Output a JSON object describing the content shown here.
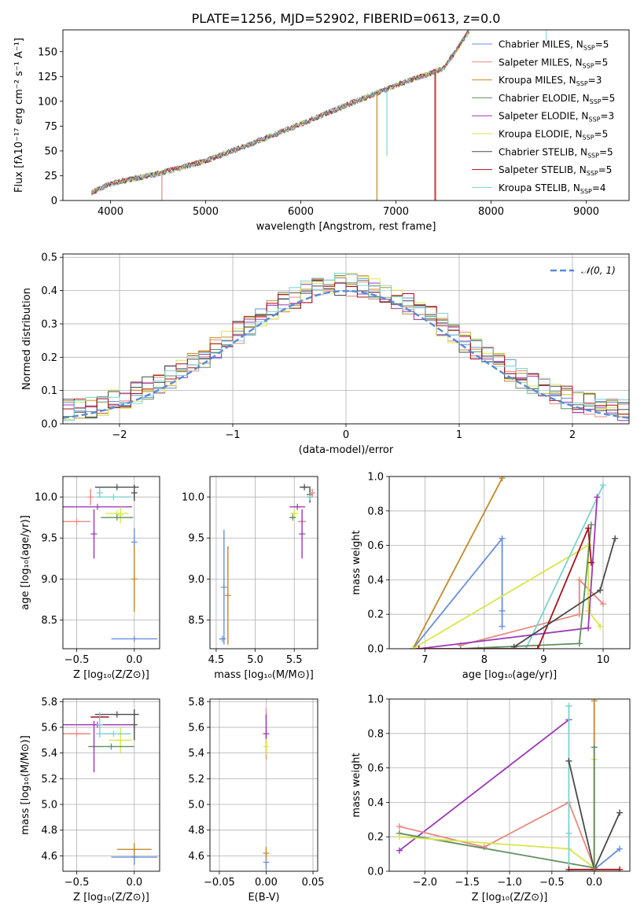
{
  "figure_title": "PLATE=1256, MJD=52902, FIBERID=0613, z=0.0",
  "model_colors": [
    "#6a8fd8",
    "#e8897e",
    "#bf8a2a",
    "#5f8f5f",
    "#9a39b5",
    "#d9e64a",
    "#4a4a4a",
    "#a3121c",
    "#7fd0d0"
  ],
  "chart_data": [
    {
      "id": "spectrum",
      "type": "line",
      "xlabel": "wavelength [Angstrom, rest frame]",
      "ylabel": "Flux [fλ10⁻¹⁷ erg cm⁻² s⁻¹ A⁻¹]",
      "xlim": [
        3500,
        9450
      ],
      "ylim": [
        0,
        172
      ],
      "xticks": [
        4000,
        5000,
        6000,
        7000,
        8000,
        9000
      ],
      "yticks": [
        0,
        25,
        50,
        75,
        100,
        125,
        150
      ],
      "grid": false,
      "legend_position": "right",
      "continuum_x": [
        3800,
        4000,
        4500,
        5000,
        5500,
        6000,
        6500,
        7000,
        7500,
        7780
      ],
      "continuum_y": [
        8,
        17,
        27,
        40,
        58,
        77,
        97,
        116,
        133,
        172
      ],
      "dips": [
        {
          "x": 4540,
          "y": 0,
          "color_index": 1
        },
        {
          "x": 6800,
          "y": 0,
          "color_index": 2
        },
        {
          "x": 6905,
          "y": 45,
          "color_index": 8
        },
        {
          "x": 7410,
          "y": 0,
          "color_index": 7
        },
        {
          "x": 7420,
          "y": 0,
          "color_index": 1
        }
      ],
      "legend": [
        {
          "label": "Chabrier MILES, N",
          "sub": "SSP",
          "tail": "=5"
        },
        {
          "label": "Salpeter MILES, N",
          "sub": "SSP",
          "tail": "=5"
        },
        {
          "label": "Kroupa MILES, N",
          "sub": "SSP",
          "tail": "=3"
        },
        {
          "label": "Chabrier ELODIE, N",
          "sub": "SSP",
          "tail": "=5"
        },
        {
          "label": "Salpeter ELODIE, N",
          "sub": "SSP",
          "tail": "=3"
        },
        {
          "label": "Kroupa ELODIE, N",
          "sub": "SSP",
          "tail": "=5"
        },
        {
          "label": "Chabrier STELIB, N",
          "sub": "SSP",
          "tail": "=5"
        },
        {
          "label": "Salpeter STELIB, N",
          "sub": "SSP",
          "tail": "=5"
        },
        {
          "label": "Kroupa STELIB, N",
          "sub": "SSP",
          "tail": "=4"
        }
      ]
    },
    {
      "id": "residuals",
      "type": "line",
      "xlabel": "(data-model)/error",
      "ylabel": "Normed distribution",
      "xlim": [
        -2.5,
        2.5
      ],
      "ylim": [
        0,
        0.51
      ],
      "xticks": [
        -2,
        -1,
        0,
        1,
        2
      ],
      "yticks": [
        0.0,
        0.1,
        0.2,
        0.3,
        0.4,
        0.5
      ],
      "grid": true,
      "legend_position": "top-right",
      "legend_label": "𝒩(0, 1)",
      "curve_color": "#5b8ad6",
      "bin_width": 0.1
    },
    {
      "id": "age-vs-z",
      "type": "scatter",
      "xlabel": "Z [log₁₀(Z/Z⊙)]",
      "ylabel": "age  [log₁₀(age/yr)]",
      "xlim": [
        -0.62,
        0.22
      ],
      "ylim": [
        8.15,
        10.25
      ],
      "xticks": [
        -0.5,
        0.0
      ],
      "yticks": [
        8.5,
        9.0,
        9.5,
        10.0
      ],
      "grid": true,
      "points": [
        {
          "c": 0,
          "x": 0.0,
          "y": 8.27,
          "xe": 0.2,
          "ye": 0.0
        },
        {
          "c": 0,
          "x": 0.0,
          "y": 9.45,
          "xe": 0.0,
          "ye": 0.17
        },
        {
          "c": 1,
          "x": -0.5,
          "y": 9.7,
          "xe": 0.12,
          "ye": 0.0
        },
        {
          "c": 1,
          "x": -0.38,
          "y": 10.0,
          "xe": 0.0,
          "ye": 0.1
        },
        {
          "c": 2,
          "x": 0.0,
          "y": 9.0,
          "xe": 0.0,
          "ye": 0.4
        },
        {
          "c": 4,
          "x": -0.32,
          "y": 9.88,
          "xe": 0.3,
          "ye": 0.0
        },
        {
          "c": 4,
          "x": -0.35,
          "y": 9.55,
          "xe": 0.0,
          "ye": 0.3
        },
        {
          "c": 5,
          "x": -0.12,
          "y": 9.78,
          "xe": 0.0,
          "ye": 0.1
        },
        {
          "c": 5,
          "x": -0.15,
          "y": 9.8,
          "xe": 0.1,
          "ye": 0.0
        },
        {
          "c": 3,
          "x": -0.15,
          "y": 9.75,
          "xe": 0.14,
          "ye": 0.0
        },
        {
          "c": 6,
          "x": -0.15,
          "y": 10.12,
          "xe": 0.19,
          "ye": 0.0
        },
        {
          "c": 6,
          "x": 0.0,
          "y": 10.05,
          "xe": 0.0,
          "ye": 0.1
        },
        {
          "c": 8,
          "x": -0.18,
          "y": 10.0,
          "xe": 0.15,
          "ye": 0.0
        },
        {
          "c": 8,
          "x": -0.3,
          "y": 10.05,
          "xe": 0.0,
          "ye": 0.06
        }
      ]
    },
    {
      "id": "age-vs-mass",
      "type": "scatter",
      "xlabel": "mass [log₁₀(M/M⊙)]",
      "ylabel": "",
      "xlim": [
        4.42,
        5.8
      ],
      "ylim": [
        8.15,
        10.25
      ],
      "xticks": [
        4.5,
        5.0,
        5.5
      ],
      "yticks": [
        8.5,
        9.0,
        9.5,
        10.0
      ],
      "grid": true,
      "points": [
        {
          "c": 0,
          "x": 4.58,
          "y": 8.27,
          "xe": 0.04,
          "ye": 0.0
        },
        {
          "c": 0,
          "x": 4.6,
          "y": 8.9,
          "xe": 0.0,
          "ye": 0.7
        },
        {
          "c": 2,
          "x": 4.65,
          "y": 8.8,
          "xe": 0.0,
          "ye": 0.6
        },
        {
          "c": 1,
          "x": 5.6,
          "y": 9.7,
          "xe": 0.05,
          "ye": 0.0
        },
        {
          "c": 4,
          "x": 5.54,
          "y": 9.88,
          "xe": 0.1,
          "ye": 0.0
        },
        {
          "c": 4,
          "x": 5.6,
          "y": 9.55,
          "xe": 0.0,
          "ye": 0.3
        },
        {
          "c": 5,
          "x": 5.5,
          "y": 9.8,
          "xe": 0.05,
          "ye": 0.05
        },
        {
          "c": 3,
          "x": 5.48,
          "y": 9.75,
          "xe": 0.04,
          "ye": 0.0
        },
        {
          "c": 6,
          "x": 5.63,
          "y": 10.12,
          "xe": 0.06,
          "ye": 0.0
        },
        {
          "c": 6,
          "x": 5.7,
          "y": 10.03,
          "xe": 0.0,
          "ye": 0.1
        },
        {
          "c": 8,
          "x": 5.7,
          "y": 10.0,
          "xe": 0.04,
          "ye": 0.0
        },
        {
          "c": 1,
          "x": 5.73,
          "y": 10.05,
          "xe": 0.0,
          "ye": 0.05
        }
      ]
    },
    {
      "id": "weight-vs-age",
      "type": "line",
      "xlabel": "age  [log₁₀(age/yr)]",
      "ylabel": "mass weight",
      "xlim": [
        6.4,
        10.45
      ],
      "ylim": [
        0,
        1.0
      ],
      "xticks": [
        7,
        8,
        9,
        10
      ],
      "yticks": [
        0.0,
        0.2,
        0.4,
        0.6,
        0.8,
        1.0
      ],
      "grid": true,
      "series": [
        {
          "c": 0,
          "x": [
            6.8,
            8.3,
            8.3,
            8.3
          ],
          "y": [
            0.0,
            0.64,
            0.22,
            0.13
          ]
        },
        {
          "c": 2,
          "x": [
            6.8,
            8.3
          ],
          "y": [
            0.0,
            0.99
          ]
        },
        {
          "c": 1,
          "x": [
            7.6,
            9.6,
            9.6,
            10.0
          ],
          "y": [
            0.02,
            0.2,
            0.4,
            0.26
          ]
        },
        {
          "c": 5,
          "x": [
            6.8,
            9.75,
            9.75,
            9.95
          ],
          "y": [
            0.0,
            0.6,
            0.22,
            0.13
          ]
        },
        {
          "c": 8,
          "x": [
            7.9,
            8.7,
            10.0
          ],
          "y": [
            0.0,
            0.0,
            0.95
          ]
        },
        {
          "c": 4,
          "x": [
            6.9,
            9.75,
            9.9
          ],
          "y": [
            0.0,
            0.12,
            0.88
          ]
        },
        {
          "c": 3,
          "x": [
            7.6,
            9.6,
            9.8
          ],
          "y": [
            0.0,
            0.03,
            0.72
          ]
        },
        {
          "c": 7,
          "x": [
            6.9,
            8.9,
            9.75,
            9.8
          ],
          "y": [
            0.0,
            0.0,
            0.7,
            0.5
          ]
        },
        {
          "c": 6,
          "x": [
            8.5,
            9.95,
            10.2
          ],
          "y": [
            0.01,
            0.34,
            0.64
          ]
        }
      ]
    },
    {
      "id": "mass-vs-z",
      "type": "scatter",
      "xlabel": "Z [log₁₀(Z/Z⊙)]",
      "ylabel": "mass [log₁₀(M/M⊙)]",
      "xlim": [
        -0.62,
        0.22
      ],
      "ylim": [
        4.48,
        5.82
      ],
      "xticks": [
        -0.5,
        0.0
      ],
      "yticks": [
        4.6,
        4.8,
        5.0,
        5.2,
        5.4,
        5.6,
        5.8
      ],
      "grid": true,
      "points": [
        {
          "c": 0,
          "x": 0.0,
          "y": 4.59,
          "xe": 0.2,
          "ye": 0.0
        },
        {
          "c": 0,
          "x": 0.0,
          "y": 4.59,
          "xe": 0.0,
          "ye": 0.06
        },
        {
          "c": 2,
          "x": 0.0,
          "y": 4.65,
          "xe": 0.0,
          "ye": 0.05
        },
        {
          "c": 2,
          "x": 0.0,
          "y": 4.65,
          "xe": 0.15,
          "ye": 0.0
        },
        {
          "c": 1,
          "x": -0.5,
          "y": 5.55,
          "xe": 0.12,
          "ye": 0.0
        },
        {
          "c": 4,
          "x": -0.32,
          "y": 5.62,
          "xe": 0.3,
          "ye": 0.0
        },
        {
          "c": 4,
          "x": -0.35,
          "y": 5.45,
          "xe": 0.0,
          "ye": 0.2
        },
        {
          "c": 7,
          "x": -0.3,
          "y": 5.68,
          "xe": 0.08,
          "ye": 0.0
        },
        {
          "c": 5,
          "x": -0.12,
          "y": 5.5,
          "xe": 0.1,
          "ye": 0.0
        },
        {
          "c": 5,
          "x": -0.12,
          "y": 5.5,
          "xe": 0.0,
          "ye": 0.1
        },
        {
          "c": 6,
          "x": -0.15,
          "y": 5.7,
          "xe": 0.19,
          "ye": 0.0
        },
        {
          "c": 6,
          "x": 0.0,
          "y": 5.62,
          "xe": 0.0,
          "ye": 0.12
        },
        {
          "c": 3,
          "x": -0.2,
          "y": 5.45,
          "xe": 0.2,
          "ye": 0.0
        },
        {
          "c": 8,
          "x": -0.18,
          "y": 5.55,
          "xe": 0.15,
          "ye": 0.0
        },
        {
          "c": 8,
          "x": -0.3,
          "y": 5.62,
          "xe": 0.0,
          "ye": 0.1
        }
      ]
    },
    {
      "id": "mass-vs-ebv",
      "type": "scatter",
      "xlabel": "E(B-V)",
      "ylabel": "",
      "xlim": [
        -0.06,
        0.055
      ],
      "ylim": [
        4.48,
        5.82
      ],
      "xticks": [
        -0.05,
        0.0,
        0.05
      ],
      "yticks": [
        4.6,
        4.8,
        5.0,
        5.2,
        5.4,
        5.6,
        5.8
      ],
      "grid": true,
      "points": [
        {
          "c": 1,
          "x": 0.0,
          "y": 5.55,
          "xe": 0.0,
          "ye": 0.2
        },
        {
          "c": 4,
          "x": 0.0,
          "y": 5.55,
          "xe": 0.0,
          "ye": 0.15
        },
        {
          "c": 5,
          "x": 0.0,
          "y": 5.45,
          "xe": 0.0,
          "ye": 0.06
        },
        {
          "c": 0,
          "x": 0.0,
          "y": 4.55,
          "xe": 0.0,
          "ye": 0.06
        },
        {
          "c": 2,
          "x": 0.0,
          "y": 4.62,
          "xe": 0.0,
          "ye": 0.05
        }
      ]
    },
    {
      "id": "weight-vs-z",
      "type": "line",
      "xlabel": "Z [log₁₀(Z/Z⊙)]",
      "ylabel": "mass weight",
      "xlim": [
        -2.42,
        0.42
      ],
      "ylim": [
        0,
        1.0
      ],
      "xticks": [
        -2.0,
        -1.5,
        -1.0,
        -0.5,
        0.0
      ],
      "yticks": [
        0.0,
        0.2,
        0.4,
        0.6,
        0.8,
        1.0
      ],
      "grid": true,
      "series": [
        {
          "c": 4,
          "x": [
            -2.3,
            -0.3
          ],
          "y": [
            0.12,
            0.88
          ]
        },
        {
          "c": 1,
          "x": [
            -2.3,
            -1.3,
            -0.3,
            0.0
          ],
          "y": [
            0.26,
            0.14,
            0.4,
            0.02
          ]
        },
        {
          "c": 3,
          "x": [
            -2.3,
            0.0
          ],
          "y": [
            0.22,
            0.02
          ]
        },
        {
          "c": 5,
          "x": [
            -2.3,
            -0.3,
            0.0,
            0.0
          ],
          "y": [
            0.2,
            0.13,
            0.02,
            0.65
          ]
        },
        {
          "c": 8,
          "x": [
            -0.3,
            -0.3,
            -0.3
          ],
          "y": [
            0.96,
            0.22,
            0.0
          ]
        },
        {
          "c": 6,
          "x": [
            -0.3,
            0.0,
            0.3
          ],
          "y": [
            0.64,
            0.01,
            0.34
          ]
        },
        {
          "c": 0,
          "x": [
            0.0,
            0.3
          ],
          "y": [
            0.01,
            0.13
          ]
        },
        {
          "c": 2,
          "x": [
            0.0,
            0.0
          ],
          "y": [
            0.0,
            0.99
          ]
        },
        {
          "c": 7,
          "x": [
            -0.3,
            0.3
          ],
          "y": [
            0.01,
            0.01
          ]
        },
        {
          "c": 3,
          "x": [
            0.0,
            0.0
          ],
          "y": [
            0.02,
            0.72
          ]
        }
      ]
    }
  ]
}
